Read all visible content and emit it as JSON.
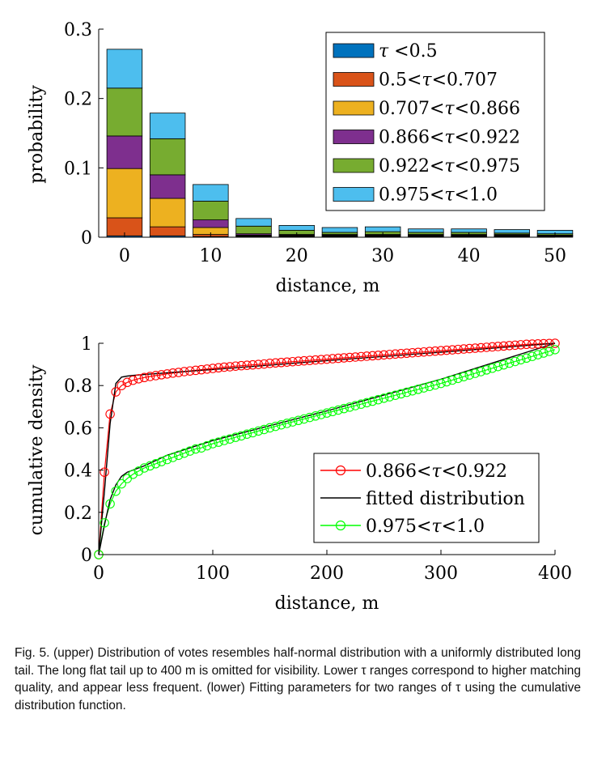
{
  "chart_data": [
    {
      "type": "bar",
      "stacked": true,
      "xlabel": "distance, m",
      "ylabel": "probability",
      "xlim": [
        -3,
        50
      ],
      "ylim": [
        0,
        0.3
      ],
      "xticks": [
        "0",
        "10",
        "20",
        "30",
        "40",
        "50"
      ],
      "yticks": [
        "0",
        "0.1",
        "0.2",
        "0.3"
      ],
      "legend_position": "top-right",
      "categories": [
        0,
        5,
        10,
        15,
        20,
        25,
        30,
        35,
        40,
        45,
        50
      ],
      "series": [
        {
          "name": "τ <0.5",
          "label_parts": [
            "τ",
            " <0.5"
          ],
          "color": "#0072BD",
          "values": [
            0.002,
            0.002,
            0.001,
            0.001,
            0.001,
            0.001,
            0.001,
            0.001,
            0.001,
            0.001,
            0.001
          ]
        },
        {
          "name": "0.5<τ<0.707",
          "label_parts": [
            "0.5<",
            "τ",
            "<0.707"
          ],
          "color": "#D95319",
          "values": [
            0.026,
            0.013,
            0.003,
            0.001,
            0.001,
            0.001,
            0.001,
            0.001,
            0.001,
            0.001,
            0.001
          ]
        },
        {
          "name": "0.707<τ<0.866",
          "label_parts": [
            "0.707<",
            "τ",
            "<0.866"
          ],
          "color": "#EDB120",
          "values": [
            0.071,
            0.041,
            0.01,
            0.001,
            0.001,
            0.001,
            0.001,
            0.001,
            0.001,
            0.001,
            0.0
          ]
        },
        {
          "name": "0.866<τ<0.922",
          "label_parts": [
            "0.866<",
            "τ",
            "<0.922"
          ],
          "color": "#7E2F8E",
          "values": [
            0.047,
            0.034,
            0.011,
            0.002,
            0.001,
            0.001,
            0.001,
            0.001,
            0.001,
            0.001,
            0.001
          ]
        },
        {
          "name": "0.922<τ<0.975",
          "label_parts": [
            "0.922<",
            "τ",
            "<0.975"
          ],
          "color": "#77AC30",
          "values": [
            0.069,
            0.052,
            0.027,
            0.011,
            0.006,
            0.003,
            0.004,
            0.003,
            0.003,
            0.002,
            0.002
          ]
        },
        {
          "name": "0.975<τ<1.0",
          "label_parts": [
            "0.975<",
            "τ",
            "<1.0"
          ],
          "color": "#4DBEEE",
          "values": [
            0.056,
            0.037,
            0.024,
            0.011,
            0.007,
            0.007,
            0.007,
            0.005,
            0.005,
            0.005,
            0.005
          ]
        }
      ]
    },
    {
      "type": "line",
      "xlabel": "distance, m",
      "ylabel": "cumulative density",
      "xlim": [
        0,
        400
      ],
      "ylim": [
        0,
        1
      ],
      "xticks": [
        "0",
        "100",
        "200",
        "300",
        "400"
      ],
      "yticks": [
        "0",
        "0.2",
        "0.4",
        "0.6",
        "0.8",
        "1"
      ],
      "legend_position": "bottom-right",
      "series": [
        {
          "name": "0.866<τ<0.922",
          "label_parts": [
            "0.866<",
            "τ",
            "<0.922"
          ],
          "color": "#FF0000",
          "marker": "circle",
          "x": [
            0,
            5,
            10,
            15,
            20,
            25,
            30,
            35,
            40,
            45,
            50,
            55,
            60,
            65,
            70,
            75,
            80,
            85,
            90,
            95,
            100,
            105,
            110,
            115,
            120,
            125,
            130,
            135,
            140,
            145,
            150,
            155,
            160,
            165,
            170,
            175,
            180,
            185,
            190,
            195,
            200,
            205,
            210,
            215,
            220,
            225,
            230,
            235,
            240,
            245,
            250,
            255,
            260,
            265,
            270,
            275,
            280,
            285,
            290,
            295,
            300,
            305,
            310,
            315,
            320,
            325,
            330,
            335,
            340,
            345,
            350,
            355,
            360,
            365,
            370,
            375,
            380,
            385,
            390,
            395,
            400
          ],
          "y": [
            0.0,
            0.39,
            0.665,
            0.77,
            0.8,
            0.815,
            0.825,
            0.832,
            0.838,
            0.843,
            0.847,
            0.851,
            0.855,
            0.859,
            0.862,
            0.866,
            0.869,
            0.872,
            0.875,
            0.878,
            0.881,
            0.884,
            0.887,
            0.889,
            0.892,
            0.894,
            0.896,
            0.898,
            0.9,
            0.902,
            0.905,
            0.907,
            0.909,
            0.911,
            0.913,
            0.915,
            0.917,
            0.919,
            0.921,
            0.923,
            0.925,
            0.927,
            0.929,
            0.931,
            0.933,
            0.935,
            0.937,
            0.939,
            0.941,
            0.943,
            0.945,
            0.947,
            0.949,
            0.951,
            0.953,
            0.955,
            0.957,
            0.959,
            0.961,
            0.963,
            0.965,
            0.967,
            0.969,
            0.971,
            0.973,
            0.975,
            0.977,
            0.979,
            0.981,
            0.983,
            0.985,
            0.987,
            0.989,
            0.991,
            0.993,
            0.995,
            0.996,
            0.997,
            0.998,
            0.999,
            1.0
          ]
        },
        {
          "name": "fitted distribution",
          "label_parts": [
            "fitted distribution"
          ],
          "color": "#000000",
          "marker": "none",
          "x": [
            0,
            5,
            10,
            15,
            20,
            25,
            30,
            40,
            60,
            100,
            200,
            300,
            400
          ],
          "y": [
            0.0,
            0.3,
            0.62,
            0.81,
            0.84,
            0.845,
            0.848,
            0.852,
            0.86,
            0.876,
            0.918,
            0.958,
            1.0
          ],
          "x2": [
            0,
            5,
            10,
            15,
            20,
            25,
            30,
            40,
            60,
            100,
            200,
            300,
            400
          ],
          "y2": [
            0.0,
            0.14,
            0.26,
            0.33,
            0.37,
            0.39,
            0.4,
            0.42,
            0.47,
            0.54,
            0.68,
            0.83,
            1.0
          ]
        },
        {
          "name": "0.975<τ<1.0",
          "label_parts": [
            "0.975<",
            "τ",
            "<1.0"
          ],
          "color": "#00FF00",
          "marker": "circle",
          "x": [
            0,
            5,
            10,
            15,
            20,
            25,
            30,
            35,
            40,
            45,
            50,
            55,
            60,
            65,
            70,
            75,
            80,
            85,
            90,
            95,
            100,
            105,
            110,
            115,
            120,
            125,
            130,
            135,
            140,
            145,
            150,
            155,
            160,
            165,
            170,
            175,
            180,
            185,
            190,
            195,
            200,
            205,
            210,
            215,
            220,
            225,
            230,
            235,
            240,
            245,
            250,
            255,
            260,
            265,
            270,
            275,
            280,
            285,
            290,
            295,
            300,
            305,
            310,
            315,
            320,
            325,
            330,
            335,
            340,
            345,
            350,
            355,
            360,
            365,
            370,
            375,
            380,
            385,
            390,
            395,
            400
          ],
          "y": [
            0.0,
            0.15,
            0.24,
            0.3,
            0.335,
            0.36,
            0.38,
            0.395,
            0.41,
            0.42,
            0.43,
            0.44,
            0.45,
            0.46,
            0.47,
            0.48,
            0.49,
            0.5,
            0.505,
            0.515,
            0.525,
            0.532,
            0.54,
            0.547,
            0.555,
            0.562,
            0.57,
            0.577,
            0.585,
            0.592,
            0.6,
            0.607,
            0.614,
            0.621,
            0.628,
            0.635,
            0.642,
            0.649,
            0.656,
            0.663,
            0.67,
            0.677,
            0.684,
            0.691,
            0.698,
            0.705,
            0.712,
            0.719,
            0.726,
            0.733,
            0.74,
            0.747,
            0.754,
            0.761,
            0.768,
            0.775,
            0.782,
            0.789,
            0.796,
            0.803,
            0.81,
            0.818,
            0.826,
            0.834,
            0.842,
            0.85,
            0.858,
            0.866,
            0.874,
            0.882,
            0.89,
            0.898,
            0.906,
            0.914,
            0.922,
            0.93,
            0.938,
            0.946,
            0.954,
            0.962,
            0.97
          ]
        }
      ]
    }
  ],
  "caption": "Fig. 5.   (upper) Distribution of votes resembles half-normal distribution with a uniformly distributed long tail. The long flat tail up to 400 m is omitted for visibility. Lower τ ranges correspond to higher matching quality, and appear less frequent. (lower) Fitting parameters for two ranges of τ using the cumulative distribution function."
}
